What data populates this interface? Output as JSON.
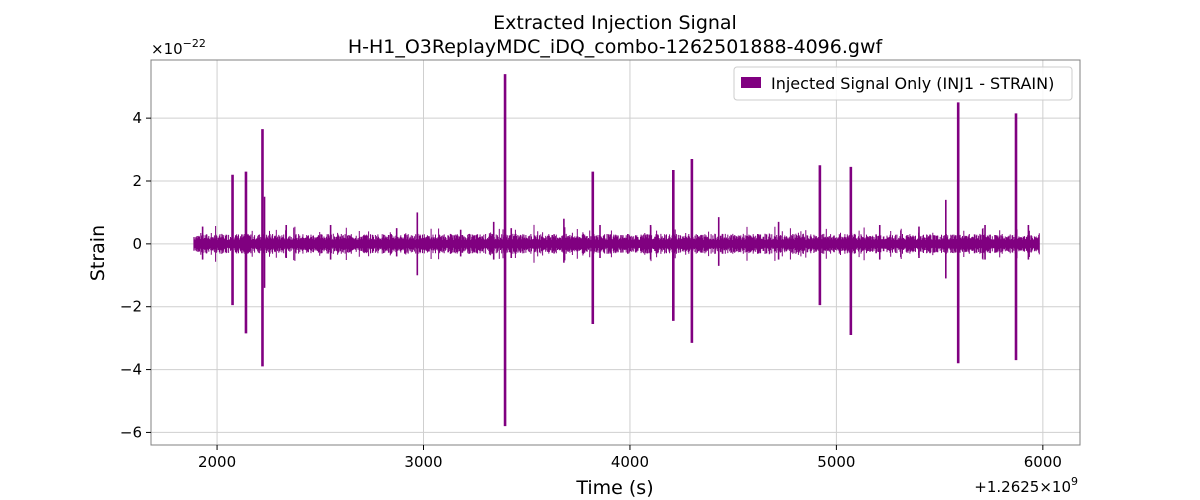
{
  "chart_data": {
    "type": "line",
    "title": "Extracted Injection Signal",
    "subtitle": "H-H1_O3ReplayMDC_iDQ_combo-1262501888-4096.gwf",
    "xlabel": "Time (s)",
    "ylabel": "Strain",
    "x_offset_label": "+1.2625×10",
    "x_offset_exp": "9",
    "y_scale_label": "×10",
    "y_scale_exp": "−22",
    "xlim": [
      1680,
      6180
    ],
    "ylim": [
      -6.4,
      5.85
    ],
    "x_ticks": [
      2000,
      3000,
      4000,
      5000,
      6000
    ],
    "x_tick_labels": [
      "2000",
      "3000",
      "4000",
      "5000",
      "6000"
    ],
    "y_ticks": [
      -6,
      -4,
      -2,
      0,
      2,
      4
    ],
    "y_tick_labels": [
      "−6",
      "−4",
      "−2",
      "0",
      "2",
      "4"
    ],
    "grid": true,
    "legend_position": "top-right",
    "series": [
      {
        "name": "Injected Signal Only (INJ1 - STRAIN)",
        "color": "#800080",
        "time_range": [
          1888,
          5984
        ],
        "baseline_band": [
          -0.12,
          0.12
        ],
        "spikes": [
          {
            "t": 1930,
            "hi": 0.55,
            "lo": -0.5
          },
          {
            "t": 2075,
            "hi": 2.2,
            "lo": -1.95
          },
          {
            "t": 2140,
            "hi": 2.3,
            "lo": -2.85
          },
          {
            "t": 2220,
            "hi": 3.65,
            "lo": -3.9
          },
          {
            "t": 2230,
            "hi": 1.5,
            "lo": -1.4
          },
          {
            "t": 2335,
            "hi": 0.6,
            "lo": -0.45
          },
          {
            "t": 2550,
            "hi": 0.6,
            "lo": -0.5
          },
          {
            "t": 2870,
            "hi": 0.5,
            "lo": -0.4
          },
          {
            "t": 2970,
            "hi": 1.0,
            "lo": -1.0
          },
          {
            "t": 3180,
            "hi": 0.45,
            "lo": -0.4
          },
          {
            "t": 3340,
            "hi": 0.7,
            "lo": -0.5
          },
          {
            "t": 3395,
            "hi": 5.4,
            "lo": -5.8
          },
          {
            "t": 3425,
            "hi": 0.5,
            "lo": -0.45
          },
          {
            "t": 3680,
            "hi": 0.8,
            "lo": -0.6
          },
          {
            "t": 3820,
            "hi": 2.3,
            "lo": -2.55
          },
          {
            "t": 3855,
            "hi": 0.6,
            "lo": -0.45
          },
          {
            "t": 4100,
            "hi": 0.6,
            "lo": -0.5
          },
          {
            "t": 4210,
            "hi": 2.35,
            "lo": -2.45
          },
          {
            "t": 4300,
            "hi": 2.7,
            "lo": -3.15
          },
          {
            "t": 4430,
            "hi": 0.85,
            "lo": -0.7
          },
          {
            "t": 4720,
            "hi": 0.7,
            "lo": -0.5
          },
          {
            "t": 4920,
            "hi": 2.5,
            "lo": -1.95
          },
          {
            "t": 5070,
            "hi": 2.45,
            "lo": -2.9
          },
          {
            "t": 5210,
            "hi": 0.6,
            "lo": -0.5
          },
          {
            "t": 5400,
            "hi": 0.55,
            "lo": -0.45
          },
          {
            "t": 5530,
            "hi": 1.4,
            "lo": -1.1
          },
          {
            "t": 5590,
            "hi": 4.5,
            "lo": -3.8
          },
          {
            "t": 5720,
            "hi": 0.6,
            "lo": -0.5
          },
          {
            "t": 5870,
            "hi": 4.15,
            "lo": -3.7
          },
          {
            "t": 5930,
            "hi": 0.6,
            "lo": -0.5
          }
        ]
      }
    ]
  }
}
